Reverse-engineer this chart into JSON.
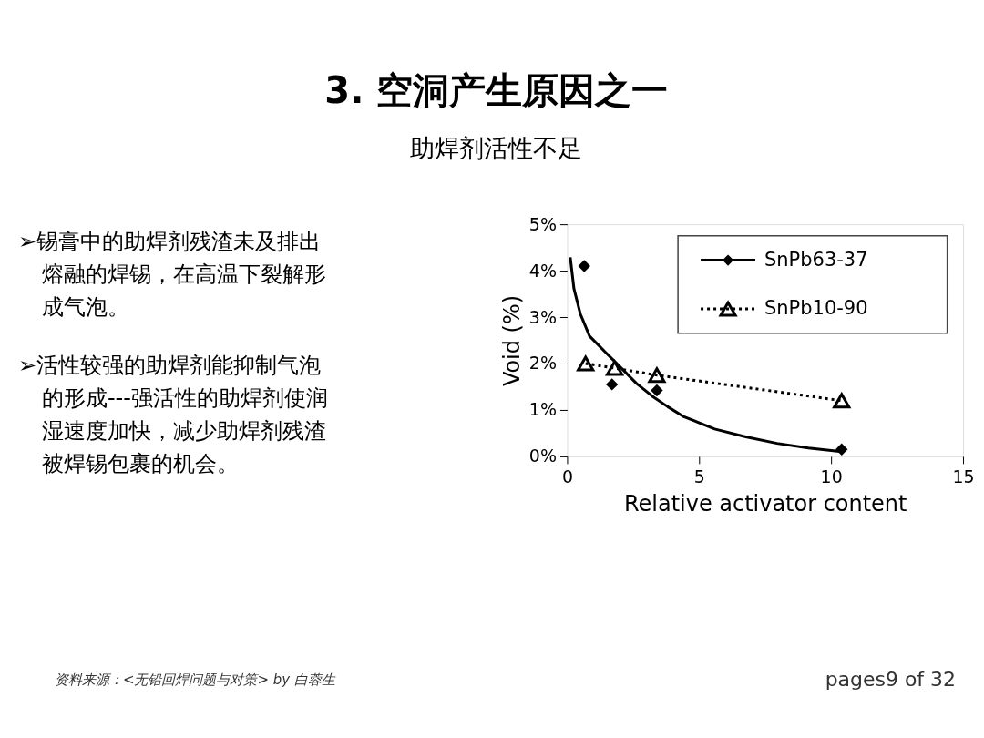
{
  "chart_data": {
    "type": "scatter",
    "title": "3. 空洞产生原因之一",
    "subtitle": "助焊剂活性不足",
    "xlabel": "Relative activator content",
    "ylabel": "Void (%)",
    "xlim": [
      0,
      15
    ],
    "ylim": [
      0,
      5
    ],
    "xticks": [
      0,
      5,
      10,
      15
    ],
    "yticks": [
      {
        "value": 0,
        "label": "0%"
      },
      {
        "value": 1,
        "label": "1%"
      },
      {
        "value": 2,
        "label": "2%"
      },
      {
        "value": 3,
        "label": "3%"
      },
      {
        "value": 4,
        "label": "4%"
      },
      {
        "value": 5,
        "label": "5%"
      }
    ],
    "grid": false,
    "legend": "top right",
    "series": [
      {
        "name": "SnPb63-37",
        "type": "scatter",
        "color": "#000000",
        "marker": "diamond",
        "x": [
          0.65,
          1.7,
          3.4,
          10.4
        ],
        "values": [
          4.1,
          1.55,
          1.42,
          0.15
        ]
      },
      {
        "type": "line",
        "color": "#000000",
        "marker": "none",
        "line_style": "solid",
        "x": [
          0.12,
          0.26,
          0.5,
          0.85,
          1.44,
          2.04,
          2.63,
          3.22,
          3.81,
          4.4,
          5.59,
          6.77,
          7.95,
          9.14,
          10.4
        ],
        "values": [
          4.29,
          3.61,
          3.07,
          2.59,
          2.25,
          1.91,
          1.57,
          1.3,
          1.07,
          0.86,
          0.59,
          0.42,
          0.28,
          0.18,
          0.1
        ]
      },
      {
        "name": "SnPb10-90",
        "type": "line",
        "color": "#000000",
        "marker": "triangle",
        "line_style": "dotted",
        "x": [
          0.7,
          1.8,
          3.4,
          10.4
        ],
        "values": [
          2.0,
          1.9,
          1.75,
          1.2
        ]
      }
    ],
    "annotations": [
      "➢锡膏中的助焊剂残渣未及排出熔融的焊锡，在高温下裂解形成气泡。",
      "➢活性较强的助焊剂能抑制气泡的形成---强活性的助焊剂使润湿速度加快，减少助焊剂残渣被焊锡包裹的机会。",
      "资料来源：<无铅回焊问题与对策> by 白蓉生",
      "pages9 of 32"
    ]
  }
}
